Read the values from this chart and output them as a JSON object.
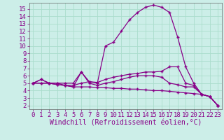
{
  "xlabel": "Windchill (Refroidissement éolien,°C)",
  "background_color": "#cceee8",
  "grid_color": "#aaddcc",
  "line_color": "#880088",
  "xlim": [
    -0.5,
    23.5
  ],
  "ylim": [
    1.5,
    15.8
  ],
  "xticks": [
    0,
    1,
    2,
    3,
    4,
    5,
    6,
    7,
    8,
    9,
    10,
    11,
    12,
    13,
    14,
    15,
    16,
    17,
    18,
    19,
    20,
    21,
    22,
    23
  ],
  "yticks": [
    2,
    3,
    4,
    5,
    6,
    7,
    8,
    9,
    10,
    11,
    12,
    13,
    14,
    15
  ],
  "series": [
    [
      5.0,
      5.5,
      5.0,
      5.0,
      5.0,
      5.0,
      6.5,
      5.2,
      5.0,
      10.0,
      10.5,
      12.0,
      13.5,
      14.5,
      15.2,
      15.5,
      15.2,
      14.5,
      11.2,
      7.2,
      5.0,
      3.5,
      3.2,
      2.0
    ],
    [
      5.0,
      5.5,
      5.0,
      5.0,
      4.7,
      4.7,
      5.0,
      5.2,
      5.1,
      5.5,
      5.8,
      6.0,
      6.2,
      6.3,
      6.5,
      6.5,
      6.6,
      7.2,
      7.2,
      5.0,
      4.7,
      3.5,
      3.2,
      2.0
    ],
    [
      5.0,
      5.0,
      5.0,
      4.8,
      4.7,
      4.5,
      6.5,
      5.0,
      4.7,
      5.0,
      5.2,
      5.5,
      5.8,
      6.0,
      6.0,
      6.0,
      5.8,
      5.0,
      4.8,
      4.5,
      4.5,
      3.5,
      3.2,
      2.0
    ],
    [
      5.0,
      5.0,
      5.0,
      4.8,
      4.7,
      4.5,
      4.5,
      4.5,
      4.4,
      4.4,
      4.3,
      4.3,
      4.2,
      4.2,
      4.1,
      4.0,
      4.0,
      3.9,
      3.8,
      3.7,
      3.6,
      3.5,
      3.2,
      2.0
    ]
  ],
  "tick_fontsize": 6.5,
  "xlabel_fontsize": 7.0
}
